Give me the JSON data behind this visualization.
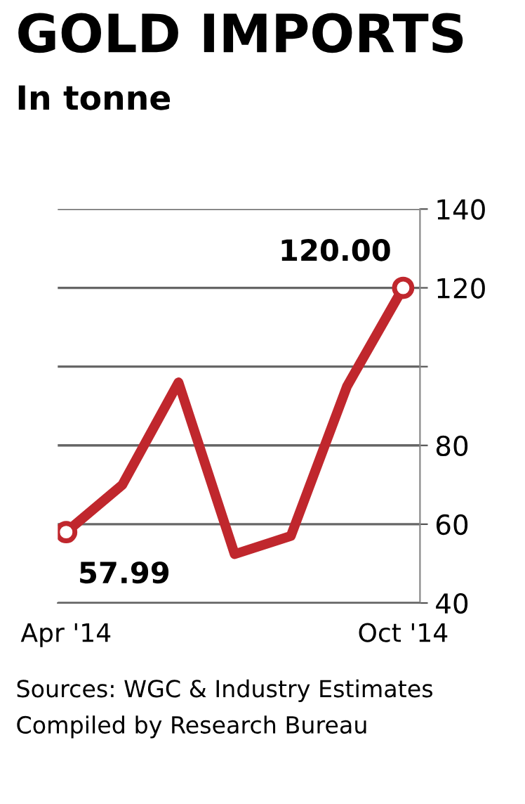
{
  "chart_data": {
    "type": "line",
    "title": "GOLD IMPORTS",
    "subtitle": "In tonne",
    "categories": [
      "Apr '14",
      null,
      null,
      null,
      null,
      null,
      "Oct '14"
    ],
    "series": [
      {
        "color": "#c0272d",
        "values": [
          57.99,
          70,
          96,
          52.4,
          57,
          95,
          120.0
        ],
        "value_labels": [
          "57.99",
          null,
          null,
          null,
          null,
          null,
          "120.00"
        ]
      }
    ],
    "ylim": [
      40,
      140
    ],
    "yticks": [
      40,
      60,
      80,
      {
        "value": 100,
        "label": null
      },
      120,
      140
    ],
    "grid": "y",
    "line_style": "solid",
    "annotations": [
      "Sources: WGC & Industry Estimates",
      "Compiled by Research Bureau"
    ]
  }
}
